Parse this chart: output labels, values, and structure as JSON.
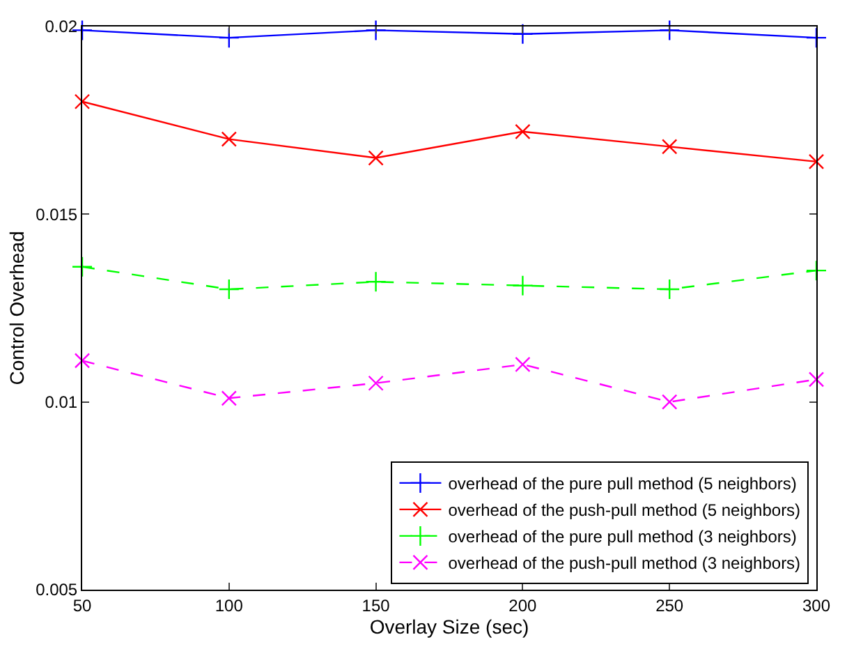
{
  "chart_data": {
    "type": "line",
    "xlabel": "Overlay Size (sec)",
    "ylabel": "Control Overhead",
    "x": [
      50,
      100,
      150,
      200,
      250,
      300
    ],
    "series": [
      {
        "name": "overhead of the pure pull method (5 neighbors)",
        "color": "#0000ff",
        "marker": "cross",
        "line_style": "solid",
        "values": [
          0.0199,
          0.0197,
          0.0199,
          0.0198,
          0.0199,
          0.0197
        ]
      },
      {
        "name": "overhead of the push-pull method (5 neighbors)",
        "color": "#ff0000",
        "marker": "x",
        "line_style": "solid",
        "values": [
          0.018,
          0.017,
          0.0165,
          0.0172,
          0.0168,
          0.0164
        ]
      },
      {
        "name": "overhead of the pure pull method (3 neighbors)",
        "color": "#00ff00",
        "marker": "cross",
        "line_style": "dashed",
        "values": [
          0.0136,
          0.013,
          0.0132,
          0.0131,
          0.013,
          0.0135
        ]
      },
      {
        "name": "overhead of the push-pull method (3 neighbors)",
        "color": "#ff00ff",
        "marker": "x",
        "line_style": "dashed",
        "values": [
          0.0111,
          0.0101,
          0.0105,
          0.011,
          0.01,
          0.0106
        ]
      }
    ],
    "xlim": [
      50,
      300
    ],
    "xticks": [
      50,
      100,
      150,
      200,
      250,
      300
    ],
    "ylim": [
      0.005,
      0.02
    ],
    "yticks": [
      0.005,
      0.01,
      0.015,
      0.02
    ],
    "grid": false,
    "legend": "bottom right"
  }
}
